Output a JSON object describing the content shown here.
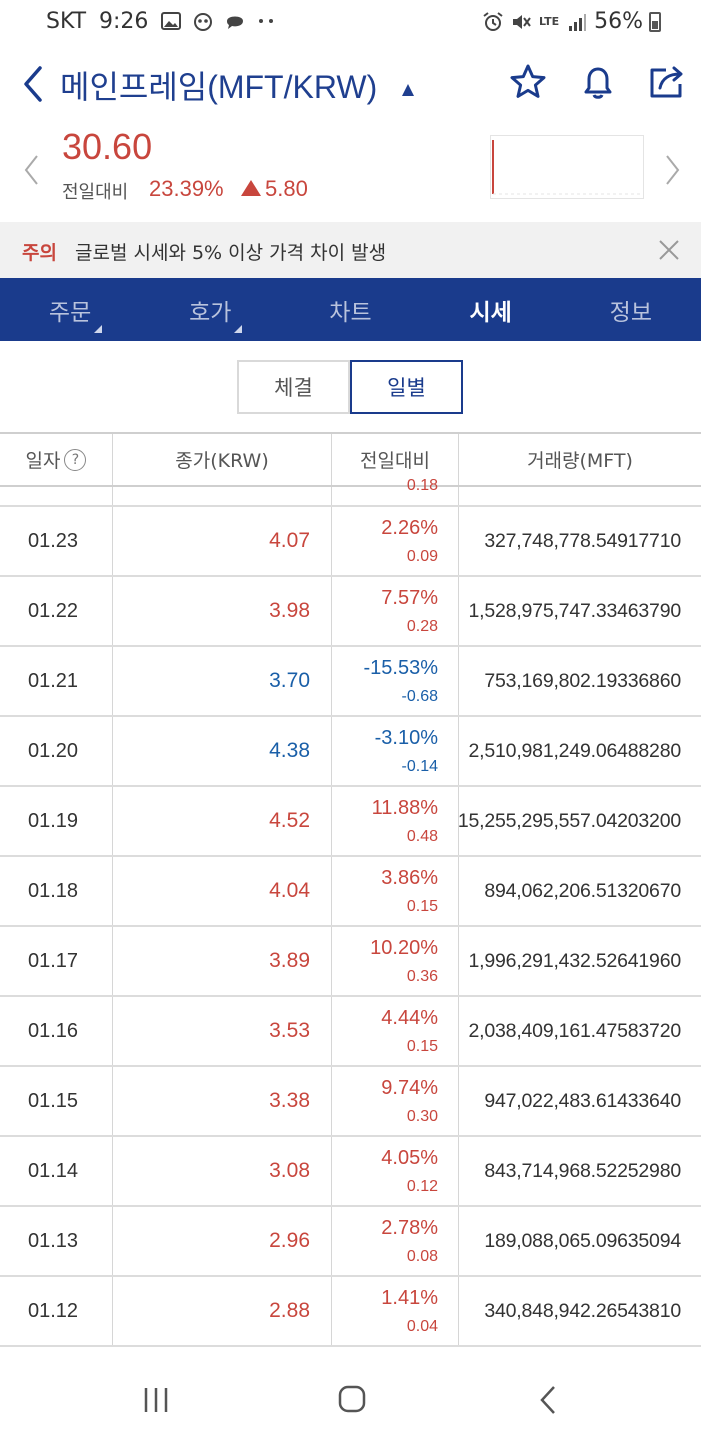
{
  "status_bar": {
    "carrier": "SKT",
    "time": "9:26",
    "battery": "56%",
    "network": "LTE"
  },
  "header": {
    "title": "메인프레임(MFT/KRW)"
  },
  "price": {
    "current": "30.60",
    "change_label": "전일대비",
    "change_pct": "23.39%",
    "change_abs": "5.80",
    "direction": "up"
  },
  "notice": {
    "tag": "주의",
    "text": "글로벌 시세와 5% 이상 가격 차이 발생"
  },
  "tabs": [
    {
      "label": "주문",
      "active": false,
      "has_menu": true
    },
    {
      "label": "호가",
      "active": false,
      "has_menu": true
    },
    {
      "label": "차트",
      "active": false,
      "has_menu": false
    },
    {
      "label": "시세",
      "active": true,
      "has_menu": false
    },
    {
      "label": "정보",
      "active": false,
      "has_menu": false
    }
  ],
  "segment": {
    "options": [
      "체결",
      "일별"
    ],
    "selected": "일별"
  },
  "table": {
    "columns": [
      "일자",
      "종가(KRW)",
      "전일대비",
      "거래량(MFT)"
    ],
    "partial_top_value": "0.18",
    "rows": [
      {
        "date": "01.23",
        "close": "4.07",
        "pct": "2.26%",
        "diff": "0.09",
        "volume": "327,748,778.54917710",
        "dir": "up"
      },
      {
        "date": "01.22",
        "close": "3.98",
        "pct": "7.57%",
        "diff": "0.28",
        "volume": "1,528,975,747.33463790",
        "dir": "up"
      },
      {
        "date": "01.21",
        "close": "3.70",
        "pct": "-15.53%",
        "diff": "-0.68",
        "volume": "753,169,802.19336860",
        "dir": "down"
      },
      {
        "date": "01.20",
        "close": "4.38",
        "pct": "-3.10%",
        "diff": "-0.14",
        "volume": "2,510,981,249.06488280",
        "dir": "down"
      },
      {
        "date": "01.19",
        "close": "4.52",
        "pct": "11.88%",
        "diff": "0.48",
        "volume": "15,255,295,557.04203200",
        "dir": "up"
      },
      {
        "date": "01.18",
        "close": "4.04",
        "pct": "3.86%",
        "diff": "0.15",
        "volume": "894,062,206.51320670",
        "dir": "up"
      },
      {
        "date": "01.17",
        "close": "3.89",
        "pct": "10.20%",
        "diff": "0.36",
        "volume": "1,996,291,432.52641960",
        "dir": "up"
      },
      {
        "date": "01.16",
        "close": "3.53",
        "pct": "4.44%",
        "diff": "0.15",
        "volume": "2,038,409,161.47583720",
        "dir": "up"
      },
      {
        "date": "01.15",
        "close": "3.38",
        "pct": "9.74%",
        "diff": "0.30",
        "volume": "947,022,483.61433640",
        "dir": "up"
      },
      {
        "date": "01.14",
        "close": "3.08",
        "pct": "4.05%",
        "diff": "0.12",
        "volume": "843,714,968.52252980",
        "dir": "up"
      },
      {
        "date": "01.13",
        "close": "2.96",
        "pct": "2.78%",
        "diff": "0.08",
        "volume": "189,088,065.09635094",
        "dir": "up"
      },
      {
        "date": "01.12",
        "close": "2.88",
        "pct": "1.41%",
        "diff": "0.04",
        "volume": "340,848,942.26543810",
        "dir": "up"
      }
    ]
  },
  "colors": {
    "up": "#c8463d",
    "down": "#1a5fa8",
    "brand": "#1a3b8c"
  },
  "icons": [
    "back-arrow-icon",
    "star-icon",
    "bell-icon",
    "share-icon",
    "close-icon",
    "help-icon",
    "recent-apps-icon",
    "home-icon",
    "back-nav-icon"
  ]
}
